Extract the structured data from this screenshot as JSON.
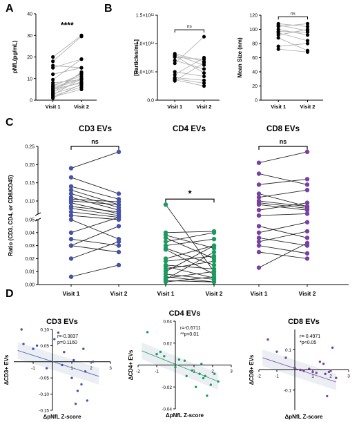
{
  "panel_letters": [
    "A",
    "B",
    "C",
    "D"
  ],
  "colors": {
    "black": "#000000",
    "gray": "#b0b0b0",
    "cd3": "#4652a8",
    "cd4": "#1a9a5e",
    "cd8": "#7a3fa2"
  },
  "chart_data": [
    {
      "type": "scatter",
      "panel": "A",
      "ylabel": "pNfL(pg/mL)",
      "ylim": [
        0,
        40
      ],
      "yticks": [
        "0",
        "10",
        "20",
        "30",
        "40"
      ],
      "categories": [
        "Visit 1",
        "Visit 2"
      ],
      "significance": "****",
      "pairs": [
        [
          20,
          30
        ],
        [
          18,
          29.5
        ],
        [
          15,
          19
        ],
        [
          12,
          15
        ],
        [
          9.5,
          19
        ],
        [
          8,
          9.5
        ],
        [
          7,
          11
        ],
        [
          6.5,
          12
        ],
        [
          6,
          10
        ],
        [
          5.5,
          9.5
        ],
        [
          5,
          8
        ],
        [
          4.5,
          12.5
        ],
        [
          4,
          8.5
        ],
        [
          3.5,
          13
        ],
        [
          3,
          7
        ],
        [
          2.5,
          10
        ],
        [
          2,
          6
        ],
        [
          1.5,
          5
        ],
        [
          1,
          7.5
        ],
        [
          16,
          15
        ]
      ]
    },
    {
      "type": "scatter",
      "panel": "B1",
      "ylabel": "[Particles/mL]",
      "ylim": [
        0,
        1.5
      ],
      "yticks": [
        "0.0",
        "5.0×10¹¹",
        "1.0×10¹²",
        "1.5×10¹²"
      ],
      "categories": [
        "Visit 1",
        "Visit 2"
      ],
      "significance": "ns",
      "pairs": [
        [
          0.82,
          0.68
        ],
        [
          0.8,
          0.62
        ],
        [
          0.78,
          0.48
        ],
        [
          0.76,
          0.72
        ],
        [
          0.7,
          0.55
        ],
        [
          0.65,
          1.12
        ],
        [
          0.5,
          0.42
        ],
        [
          0.45,
          0.75
        ],
        [
          0.4,
          0.35
        ],
        [
          0.38,
          0.3
        ],
        [
          0.36,
          0.25
        ],
        [
          0.34,
          0.66
        ]
      ]
    },
    {
      "type": "scatter",
      "panel": "B2",
      "ylabel": "Mean Size (nm)",
      "ylim": [
        0,
        120
      ],
      "yticks": [
        "0",
        "20",
        "40",
        "60",
        "80",
        "100",
        "120"
      ],
      "categories": [
        "Visit 1",
        "Visit 2"
      ],
      "significance": "ns",
      "pairs": [
        [
          108,
          104
        ],
        [
          106,
          98
        ],
        [
          104,
          108
        ],
        [
          100,
          92
        ],
        [
          97,
          96
        ],
        [
          95,
          84
        ],
        [
          92,
          100
        ],
        [
          88,
          70
        ],
        [
          76,
          80
        ],
        [
          72,
          68
        ]
      ]
    },
    {
      "type": "scatter",
      "panel": "C",
      "ylabel": "Ratio (CD3, CD4, or CD8/CD45)",
      "yticks_lower": [
        "0.00",
        "0.01",
        "0.02",
        "0.03",
        "0.04",
        "0.05"
      ],
      "yticks_upper": [
        "0.10",
        "0.15",
        "0.20",
        "0.25"
      ],
      "groups": [
        {
          "title": "CD3 EVs",
          "categories": [
            "Visit 1",
            "Visit 2"
          ],
          "significance": "ns",
          "color": "#4652a8",
          "pairs": [
            [
              0.19,
              0.235
            ],
            [
              0.165,
              0.12
            ],
            [
              0.14,
              0.105
            ],
            [
              0.13,
              0.09
            ],
            [
              0.12,
              0.082
            ],
            [
              0.11,
              0.075
            ],
            [
              0.105,
              0.098
            ],
            [
              0.1,
              0.09
            ],
            [
              0.095,
              0.065
            ],
            [
              0.085,
              0.07
            ],
            [
              0.08,
              0.06
            ],
            [
              0.07,
              0.055
            ],
            [
              0.06,
              0.05
            ],
            [
              0.05,
              0.035
            ],
            [
              0.04,
              0.055
            ],
            [
              0.035,
              0.03
            ],
            [
              0.03,
              0.045
            ],
            [
              0.03,
              0.025
            ],
            [
              0.02,
              0.033
            ],
            [
              0.006,
              0.015
            ]
          ]
        },
        {
          "title": "CD4 EVs",
          "categories": [
            "Visit 1",
            "Visit 2"
          ],
          "significance": "*",
          "color": "#1a9a5e",
          "pairs": [
            [
              0.09,
              0.01
            ],
            [
              0.04,
              0.041
            ],
            [
              0.038,
              0.028
            ],
            [
              0.036,
              0.02
            ],
            [
              0.033,
              0.04
            ],
            [
              0.03,
              0.035
            ],
            [
              0.028,
              0.015
            ],
            [
              0.027,
              0.008
            ],
            [
              0.02,
              0.03
            ],
            [
              0.018,
              0.022
            ],
            [
              0.015,
              0.012
            ],
            [
              0.014,
              0.005
            ],
            [
              0.012,
              0.018
            ],
            [
              0.01,
              0.03
            ],
            [
              0.008,
              0.004
            ],
            [
              0.006,
              0.002
            ],
            [
              0.005,
              0.01
            ],
            [
              0.004,
              0.025
            ],
            [
              0.003,
              0.002
            ],
            [
              0.002,
              0.006
            ]
          ]
        },
        {
          "title": "CD8 EVs",
          "categories": [
            "Visit 1",
            "Visit 2"
          ],
          "significance": "ns",
          "color": "#7a3fa2",
          "pairs": [
            [
              0.205,
              0.235
            ],
            [
              0.175,
              0.145
            ],
            [
              0.145,
              0.16
            ],
            [
              0.12,
              0.085
            ],
            [
              0.11,
              0.13
            ],
            [
              0.1,
              0.085
            ],
            [
              0.095,
              0.08
            ],
            [
              0.09,
              0.075
            ],
            [
              0.075,
              0.095
            ],
            [
              0.06,
              0.065
            ],
            [
              0.045,
              0.036
            ],
            [
              0.04,
              0.048
            ],
            [
              0.036,
              0.03
            ],
            [
              0.033,
              0.041
            ],
            [
              0.03,
              0.024
            ],
            [
              0.025,
              0.02
            ],
            [
              0.013,
              0.032
            ]
          ]
        }
      ]
    },
    {
      "type": "scatter",
      "panel": "D1",
      "title": "CD3 EVs",
      "xlabel": "ΔpNfL Z-score",
      "ylabel": "ΔCD3+ EVs",
      "xlim": [
        -2,
        3
      ],
      "ylim": [
        -0.15,
        0.1
      ],
      "xticks": [
        "-1",
        "1",
        "2",
        "3"
      ],
      "yticks": [
        "0.10",
        "0.05",
        "-0.05",
        "-0.10",
        "-0.15"
      ],
      "stat_r": "r=-0.3837",
      "stat_p": "p=0.1160",
      "color": "#4652a8",
      "fit": [
        [
          -1.8,
          0.035
        ],
        [
          2.4,
          -0.045
        ]
      ],
      "points": [
        [
          -1.6,
          0.1
        ],
        [
          -1.5,
          0.055
        ],
        [
          -1.0,
          0.04
        ],
        [
          -0.8,
          0.05
        ],
        [
          -0.3,
          -0.02
        ],
        [
          0.1,
          0.07
        ],
        [
          0.3,
          0.09
        ],
        [
          0.5,
          -0.01
        ],
        [
          0.6,
          0.03
        ],
        [
          1.0,
          -0.05
        ],
        [
          1.1,
          0.005
        ],
        [
          1.3,
          -0.09
        ],
        [
          1.5,
          -0.07
        ],
        [
          1.6,
          0.04
        ],
        [
          1.7,
          -0.03
        ],
        [
          1.8,
          -0.12
        ],
        [
          2.1,
          0.0
        ],
        [
          1.2,
          -0.13
        ]
      ]
    },
    {
      "type": "scatter",
      "panel": "D2",
      "title": "CD4 EVs",
      "xlabel": "ΔpNfL Z-score",
      "ylabel": "ΔCD4+ EVs",
      "xlim": [
        -2,
        3
      ],
      "ylim": [
        -0.04,
        0.04
      ],
      "xticks": [
        "-2",
        "-1",
        "1",
        "2",
        "3"
      ],
      "yticks": [
        "0.04",
        "0.02",
        "-0.02",
        "-0.04"
      ],
      "stat_r": "r=-0.6711",
      "stat_p": "**p<0.01",
      "color": "#1a9a5e",
      "fit": [
        [
          -1.8,
          0.013
        ],
        [
          2.3,
          -0.015
        ]
      ],
      "points": [
        [
          -1.5,
          0.03
        ],
        [
          -1.0,
          0.01
        ],
        [
          -0.8,
          0.012
        ],
        [
          -0.6,
          0.008
        ],
        [
          0.0,
          -0.002
        ],
        [
          0.2,
          0.005
        ],
        [
          0.5,
          0.004
        ],
        [
          0.6,
          -0.01
        ],
        [
          0.9,
          -0.005
        ],
        [
          1.1,
          -0.02
        ],
        [
          1.3,
          -0.008
        ],
        [
          1.5,
          -0.012
        ],
        [
          1.6,
          -0.01
        ],
        [
          1.7,
          -0.028
        ],
        [
          1.9,
          -0.018
        ],
        [
          2.1,
          -0.008
        ],
        [
          2.3,
          -0.015
        ],
        [
          1.4,
          0.001
        ]
      ]
    },
    {
      "type": "scatter",
      "panel": "D3",
      "title": "CD8 EVs",
      "xlabel": "ΔpNfL Z-score",
      "ylabel": "ΔCD8+ EVs",
      "xlim": [
        -2,
        3
      ],
      "ylim": [
        -0.2,
        0.2
      ],
      "xticks": [
        "-2",
        "-1",
        "1",
        "2",
        "3"
      ],
      "yticks": [
        "0.1",
        "-0.1"
      ],
      "stat_r": "r=-0.4971",
      "stat_p": "*p<0.05",
      "color": "#7a3fa2",
      "fit": [
        [
          -1.8,
          0.06
        ],
        [
          2.3,
          -0.06
        ]
      ],
      "points": [
        [
          -1.5,
          0.15
        ],
        [
          -1.0,
          0.09
        ],
        [
          -0.5,
          0.06
        ],
        [
          0.0,
          0.01
        ],
        [
          0.3,
          0.0
        ],
        [
          0.5,
          -0.005
        ],
        [
          0.8,
          0.005
        ],
        [
          1.0,
          -0.01
        ],
        [
          1.2,
          -0.015
        ],
        [
          1.4,
          0.04
        ],
        [
          1.6,
          0.03
        ],
        [
          1.7,
          -0.02
        ],
        [
          1.9,
          -0.01
        ],
        [
          2.0,
          -0.005
        ],
        [
          2.1,
          0.11
        ],
        [
          1.8,
          -0.13
        ],
        [
          2.3,
          -0.04
        ]
      ]
    }
  ]
}
